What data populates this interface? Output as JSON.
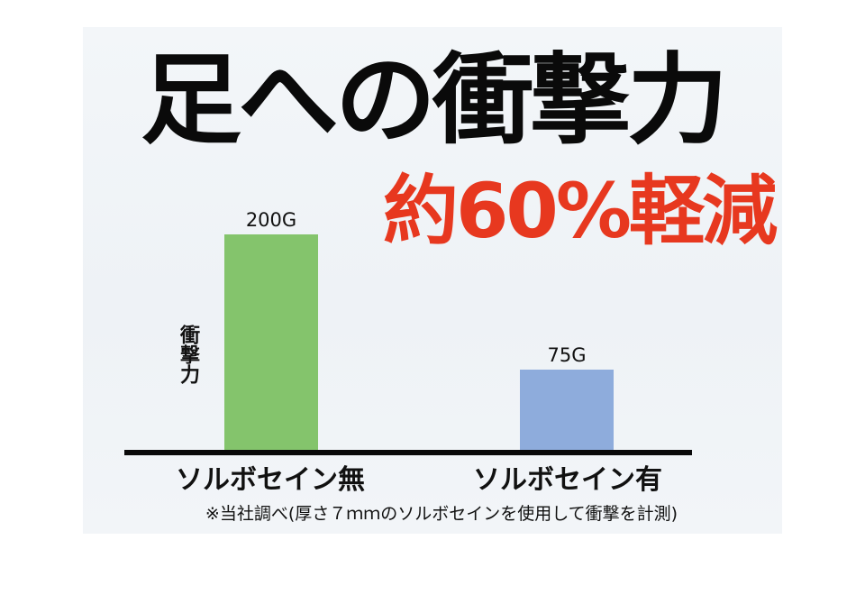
{
  "headline": "足への衝撃力",
  "subheadline": "約60%軽減",
  "footnote": "※当社調べ(厚さ７ｍｍのソルボセインを使用して衝撃を計測)",
  "chart_data": {
    "type": "bar",
    "ylabel": "衝撃力",
    "xlabel": "",
    "categories": [
      "ソルボセイン無",
      "ソルボセイン有"
    ],
    "values": [
      200,
      75
    ],
    "value_labels": [
      "200G",
      "75G"
    ],
    "unit": "G",
    "ylim": [
      0,
      200
    ],
    "colors": [
      "#84c46c",
      "#8eacdc"
    ],
    "grid": false,
    "legend": "none"
  }
}
